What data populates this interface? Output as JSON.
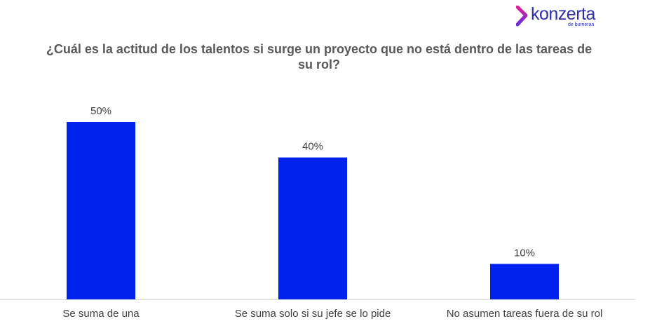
{
  "logo": {
    "name": "konzerta",
    "subtitle": "de bumeran"
  },
  "colors": {
    "bar": "#0022ee",
    "axis": "#d9d9d9",
    "label": "#404040",
    "title": "#595959",
    "brand_magenta": "#e0219a",
    "brand_blue": "#2d2ea8"
  },
  "chart_data": {
    "type": "bar",
    "title": "¿Cuál es la actitud de los talentos si surge un proyecto que no está dentro de las tareas de su rol?",
    "categories": [
      "Se suma de una",
      "Se suma solo si su jefe se lo pide",
      "No asumen tareas fuera de su rol"
    ],
    "values": [
      50,
      40,
      10
    ],
    "data_labels": [
      "50%",
      "40%",
      "10%"
    ],
    "xlabel": "",
    "ylabel": "",
    "ylim": [
      0,
      50
    ],
    "grid": false,
    "legend": "none"
  }
}
